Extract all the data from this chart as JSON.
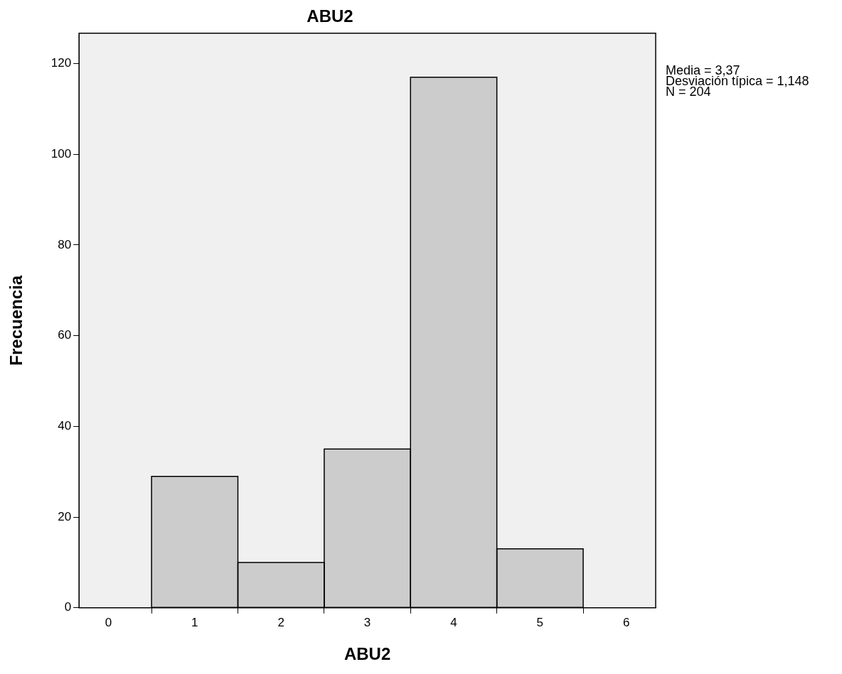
{
  "chart_data": {
    "type": "histogram",
    "title": "ABU2",
    "xlabel": "ABU2",
    "ylabel": "Frecuencia",
    "bins": [
      0.5,
      1.5,
      2.5,
      3.5,
      4.5,
      5.5
    ],
    "values": [
      29,
      10,
      35,
      117,
      13
    ],
    "color": "#cccccc",
    "xlim": [
      -0.34,
      6.34
    ],
    "xticks": [
      0,
      1,
      2,
      3,
      4,
      5,
      6
    ],
    "ylim": [
      0,
      126.7
    ],
    "yticks": [
      0,
      20,
      40,
      60,
      80,
      100,
      120
    ],
    "grid": false,
    "legend": false,
    "annotations": [
      "Media = 3,37",
      "Desviación típica = 1,148",
      "N = 204"
    ]
  }
}
